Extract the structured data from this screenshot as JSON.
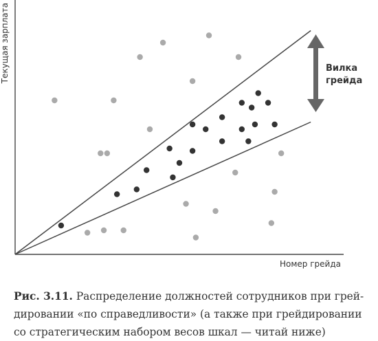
{
  "chart_data": {
    "type": "scatter",
    "xlabel": "Номер грейда",
    "ylabel": "Текущая зарплата",
    "annotation": "Вилка грейда",
    "xlim": [
      0,
      10
    ],
    "ylim": [
      0,
      10
    ],
    "grid": false,
    "series": [
      {
        "name": "",
        "color": "#aaaaaa",
        "points": [
          [
            1.2,
            6.4
          ],
          [
            2.6,
            4.2
          ],
          [
            2.8,
            4.2
          ],
          [
            2.2,
            0.9
          ],
          [
            2.7,
            1.0
          ],
          [
            3.3,
            1.0
          ],
          [
            3.0,
            6.4
          ],
          [
            3.8,
            8.2
          ],
          [
            4.1,
            5.2
          ],
          [
            4.5,
            8.8
          ],
          [
            5.2,
            2.1
          ],
          [
            5.4,
            7.2
          ],
          [
            5.5,
            0.7
          ],
          [
            5.9,
            9.1
          ],
          [
            6.1,
            1.8
          ],
          [
            6.7,
            3.4
          ],
          [
            6.8,
            8.2
          ],
          [
            7.8,
            1.3
          ],
          [
            7.9,
            2.6
          ],
          [
            8.1,
            4.2
          ]
        ]
      },
      {
        "name": "",
        "color": "#333333",
        "points": [
          [
            1.4,
            1.2
          ],
          [
            3.1,
            2.5
          ],
          [
            3.7,
            2.7
          ],
          [
            4.0,
            3.5
          ],
          [
            4.8,
            3.2
          ],
          [
            5.0,
            3.8
          ],
          [
            4.7,
            4.4
          ],
          [
            5.4,
            4.3
          ],
          [
            5.4,
            5.4
          ],
          [
            5.8,
            5.2
          ],
          [
            6.3,
            4.7
          ],
          [
            6.3,
            5.7
          ],
          [
            6.9,
            5.2
          ],
          [
            6.9,
            6.3
          ],
          [
            7.2,
            6.1
          ],
          [
            7.4,
            6.7
          ],
          [
            7.1,
            4.7
          ],
          [
            7.3,
            5.4
          ],
          [
            7.7,
            6.3
          ],
          [
            7.9,
            5.4
          ]
        ]
      }
    ],
    "lines": [
      {
        "from": [
          0,
          0
        ],
        "to": [
          9.0,
          9.3
        ]
      },
      {
        "from": [
          0,
          0
        ],
        "to": [
          9.0,
          5.5
        ]
      }
    ]
  },
  "caption": {
    "number": "Рис. 3.11.",
    "text": " Распределение должностей сотрудников при грей-дировании «по справедливости» (а также при грейдировании со стратегическим набором весов шкал — читай ниже)"
  }
}
